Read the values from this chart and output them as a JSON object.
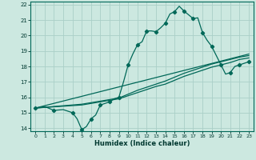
{
  "xlabel": "Humidex (Indice chaleur)",
  "background_color": "#cce8e0",
  "grid_color": "#aacfc8",
  "line_color": "#006858",
  "xlim": [
    -0.5,
    23.5
  ],
  "ylim": [
    13.8,
    22.2
  ],
  "xticks": [
    0,
    1,
    2,
    3,
    4,
    5,
    6,
    7,
    8,
    9,
    10,
    11,
    12,
    13,
    14,
    15,
    16,
    17,
    18,
    19,
    20,
    21,
    22,
    23
  ],
  "yticks": [
    14,
    15,
    16,
    17,
    18,
    19,
    20,
    21,
    22
  ],
  "line1_x": [
    0,
    1,
    2,
    3,
    4,
    4.5,
    5,
    5.5,
    6,
    6.5,
    7,
    7.5,
    8,
    8.5,
    9,
    9.5,
    10,
    10.5,
    11,
    11.5,
    12,
    12.5,
    13,
    13.5,
    14,
    14.5,
    15,
    15.5,
    16,
    16.5,
    17,
    17.5,
    18,
    18.5,
    19,
    19.5,
    20,
    20.5,
    21,
    21.5,
    22,
    22.5,
    23
  ],
  "line1_y": [
    15.3,
    15.4,
    15.15,
    15.2,
    15.0,
    14.6,
    13.9,
    14.1,
    14.6,
    14.85,
    15.5,
    15.6,
    15.7,
    15.9,
    16.0,
    17.0,
    18.1,
    18.8,
    19.4,
    19.6,
    20.3,
    20.3,
    20.25,
    20.5,
    20.8,
    21.4,
    21.55,
    21.9,
    21.6,
    21.35,
    21.1,
    21.15,
    20.2,
    19.7,
    19.3,
    18.7,
    18.1,
    17.5,
    17.6,
    18.0,
    18.1,
    18.2,
    18.3
  ],
  "line2_x": [
    0,
    23
  ],
  "line2_y": [
    15.3,
    18.8
  ],
  "line3_x": [
    0,
    5,
    6,
    7,
    8,
    9,
    10,
    11,
    12,
    13,
    14,
    15,
    16,
    17,
    18,
    19,
    20,
    21,
    22,
    23
  ],
  "line3_y": [
    15.3,
    15.55,
    15.65,
    15.75,
    15.85,
    15.95,
    16.2,
    16.45,
    16.65,
    16.85,
    17.05,
    17.3,
    17.55,
    17.75,
    17.95,
    18.15,
    18.3,
    18.45,
    18.6,
    18.7
  ],
  "line4_x": [
    0,
    5,
    6,
    7,
    8,
    9,
    10,
    11,
    12,
    13,
    14,
    15,
    16,
    17,
    18,
    19,
    20,
    21,
    22,
    23
  ],
  "line4_y": [
    15.3,
    15.5,
    15.6,
    15.7,
    15.8,
    15.9,
    16.1,
    16.3,
    16.5,
    16.7,
    16.85,
    17.1,
    17.35,
    17.55,
    17.75,
    17.95,
    18.1,
    18.25,
    18.45,
    18.55
  ]
}
